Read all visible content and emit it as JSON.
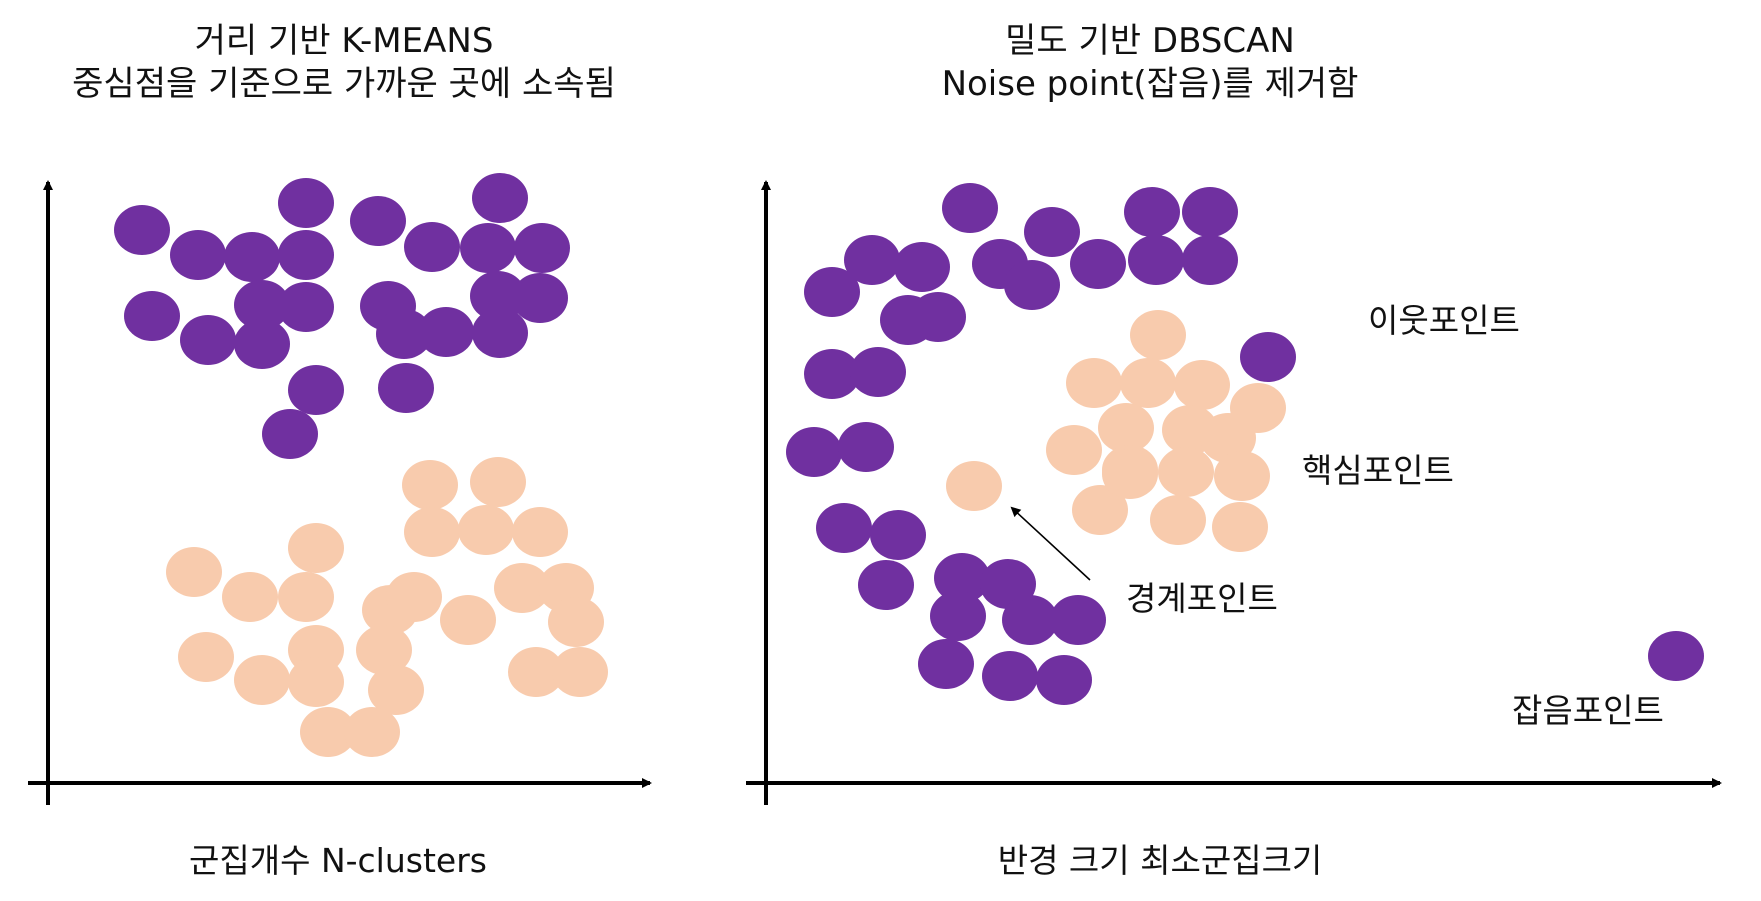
{
  "kmeans": {
    "title_line1": "거리 기반 K-MEANS",
    "title_line2": "중심점을 기준으로 가까운 곳에 소속됨",
    "parameter": "군집개수 N-clusters"
  },
  "dbscan": {
    "title_line1": "밀도 기반 DBSCAN",
    "title_line2": "Noise point(잡음)를 제거함",
    "parameter": "반경 크기 최소군집크기",
    "labels": {
      "neighbor": "이웃포인트",
      "core": "핵심포인트",
      "border": "경계포인트",
      "noise": "잡음포인트"
    }
  },
  "colors": {
    "cluster_purple": "#7030A0",
    "cluster_peach": "#F8CBAD",
    "axis": "#000000"
  }
}
